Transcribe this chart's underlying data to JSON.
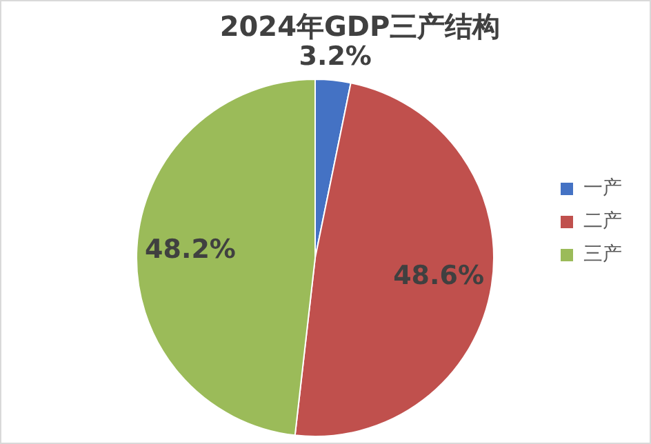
{
  "chart_data": {
    "type": "pie",
    "title": "2024年GDP三产结构",
    "categories": [
      "一产",
      "二产",
      "三产"
    ],
    "values": [
      3.2,
      48.6,
      48.2
    ],
    "colors": [
      "#4472c4",
      "#c0504d",
      "#9bbb59"
    ],
    "value_labels": [
      "3.2%",
      "48.6%",
      "48.2%"
    ],
    "legend": "right"
  }
}
